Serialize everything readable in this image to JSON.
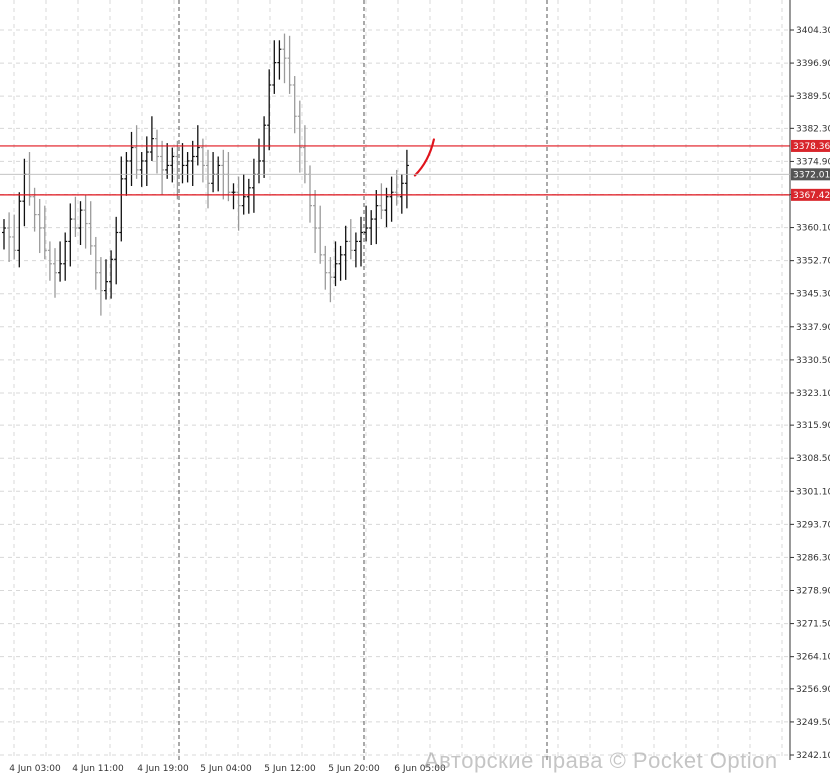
{
  "watermark": "Авторские права © Pocket Option",
  "colors": {
    "background": "#ffffff",
    "grid": "#d8d8d8",
    "bar": "#1a1a1a",
    "bar_up": "#111111",
    "bar_down": "#9a9a9a",
    "level_line": "#e0141c",
    "level_tag": "#d8262c",
    "current_tag": "#555555",
    "forecast": "#e0141c",
    "axis": "#333333"
  },
  "chart_data": {
    "type": "ohlc",
    "ylim": [
      3242.1,
      3404.3
    ],
    "y_ticks": [
      "3404.30",
      "3396.90",
      "3389.50",
      "3382.30",
      "3374.90",
      "3367.50",
      "3360.10",
      "3352.70",
      "3345.30",
      "3337.90",
      "3330.50",
      "3323.10",
      "3315.90",
      "3308.50",
      "3301.10",
      "3293.70",
      "3286.30",
      "3278.90",
      "3271.50",
      "3264.10",
      "3256.90",
      "3249.50",
      "3242.10"
    ],
    "x_labels": [
      "4 Jun 03:00",
      "4 Jun 11:00",
      "4 Jun 19:00",
      "5 Jun 04:00",
      "5 Jun 12:00",
      "5 Jun 20:00",
      "6 Jun 05:00"
    ],
    "horizontal_levels": [
      {
        "value": 3378.36,
        "label": "3378.36"
      },
      {
        "value": 3367.42,
        "label": "3367.42"
      }
    ],
    "current_price": {
      "value": 3372.01,
      "label": "3372.01"
    },
    "closes": [
      3360,
      3358,
      3355,
      3366,
      3372,
      3367,
      3363,
      3360,
      3355,
      3352,
      3350,
      3352,
      3357,
      3362,
      3360,
      3364,
      3361,
      3356,
      3350,
      3346,
      3348,
      3353,
      3359,
      3371,
      3375,
      3378,
      3373,
      3375,
      3377,
      3380,
      3376,
      3373,
      3374,
      3376,
      3372,
      3374,
      3375,
      3376,
      3378,
      3374,
      3370,
      3372,
      3374,
      3372,
      3368,
      3368,
      3365,
      3367,
      3369,
      3372,
      3375,
      3383,
      3392,
      3397,
      3400,
      3398,
      3392,
      3385,
      3378,
      3372,
      3365,
      3360,
      3354,
      3350,
      3349,
      3352,
      3354,
      3357,
      3355,
      3357,
      3359,
      3360,
      3362,
      3365,
      3364,
      3367,
      3368,
      3367,
      3370,
      3374
    ]
  }
}
